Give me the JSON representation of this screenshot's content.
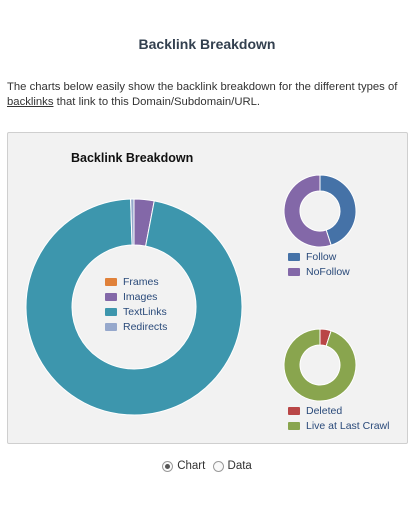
{
  "page": {
    "title": "Backlink Breakdown",
    "intro_before": "The charts below easily show the backlink breakdown for the different types of ",
    "intro_link": "backlinks",
    "intro_after": " that link to this Domain/Subdomain/URL."
  },
  "chart_data": [
    {
      "type": "pie",
      "title": "Backlink Breakdown",
      "categories": [
        "Frames",
        "Images",
        "TextLinks",
        "Redirects"
      ],
      "values": [
        0,
        3,
        96.5,
        0.5
      ],
      "colors": [
        "#e0813a",
        "#8368a8",
        "#3d96ad",
        "#96a8cc"
      ]
    },
    {
      "type": "pie",
      "title": "",
      "categories": [
        "Follow",
        "NoFollow"
      ],
      "values": [
        45,
        55
      ],
      "colors": [
        "#4572a7",
        "#8368a8"
      ]
    },
    {
      "type": "pie",
      "title": "",
      "categories": [
        "Deleted",
        "Live at Last Crawl"
      ],
      "values": [
        5,
        95
      ],
      "colors": [
        "#b94646",
        "#89a54e"
      ]
    }
  ],
  "view_toggle": {
    "options": [
      "Chart",
      "Data"
    ],
    "selected": "Chart"
  }
}
